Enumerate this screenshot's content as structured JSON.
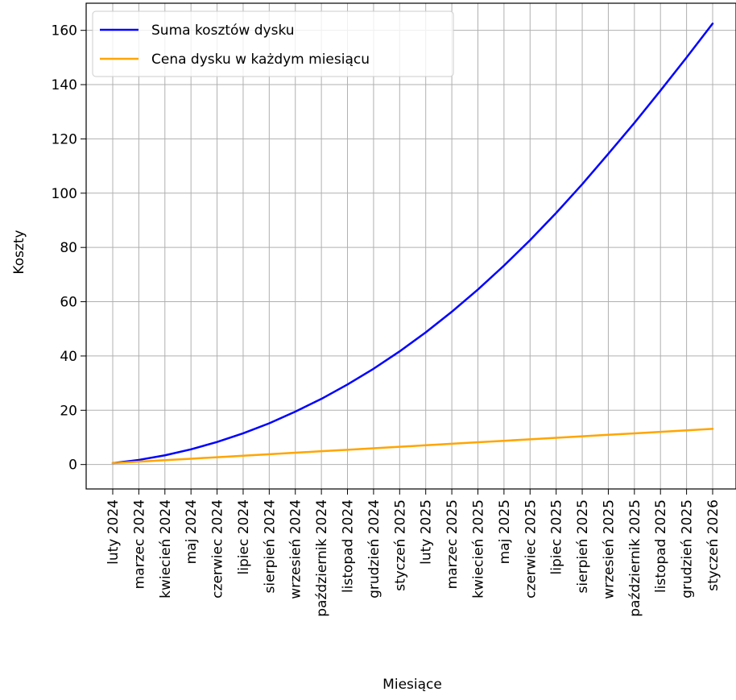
{
  "chart_data": {
    "type": "line",
    "title": "",
    "xlabel": "Miesiące",
    "ylabel": "Koszty",
    "categories": [
      "luty 2024",
      "marzec 2024",
      "kwiecień 2024",
      "maj 2024",
      "czerwiec 2024",
      "lipiec 2024",
      "sierpień 2024",
      "wrzesień 2024",
      "październik 2024",
      "listopad 2024",
      "grudzień 2024",
      "styczeń 2025",
      "luty 2025",
      "marzec 2025",
      "kwiecień 2025",
      "maj 2025",
      "czerwiec 2025",
      "lipiec 2025",
      "sierpień 2025",
      "wrzesień 2025",
      "październik 2025",
      "listopad 2025",
      "grudzień 2025",
      "styczeń 2026"
    ],
    "series": [
      {
        "name": "Suma kosztów dysku",
        "color": "#0000ff",
        "values": [
          0.5,
          1.7,
          3.4,
          5.6,
          8.3,
          11.5,
          15.2,
          19.5,
          24.2,
          29.5,
          35.3,
          41.7,
          48.7,
          56.3,
          64.5,
          73.3,
          82.7,
          92.7,
          103.3,
          114.5,
          125.9,
          137.8,
          150.0,
          162.5
        ]
      },
      {
        "name": "Cena dysku w każdym miesiącu",
        "color": "#ffa500",
        "values": [
          0.5,
          1.05,
          1.6,
          2.15,
          2.7,
          3.25,
          3.8,
          4.35,
          4.9,
          5.45,
          6.0,
          6.55,
          7.1,
          7.65,
          8.2,
          8.75,
          9.3,
          9.85,
          10.4,
          10.95,
          11.5,
          12.05,
          12.6,
          13.15
        ]
      }
    ],
    "ylim": [
      -9,
      170
    ],
    "yticks": [
      0,
      20,
      40,
      60,
      80,
      100,
      120,
      140,
      160
    ],
    "grid": true,
    "legend": "top-left"
  }
}
